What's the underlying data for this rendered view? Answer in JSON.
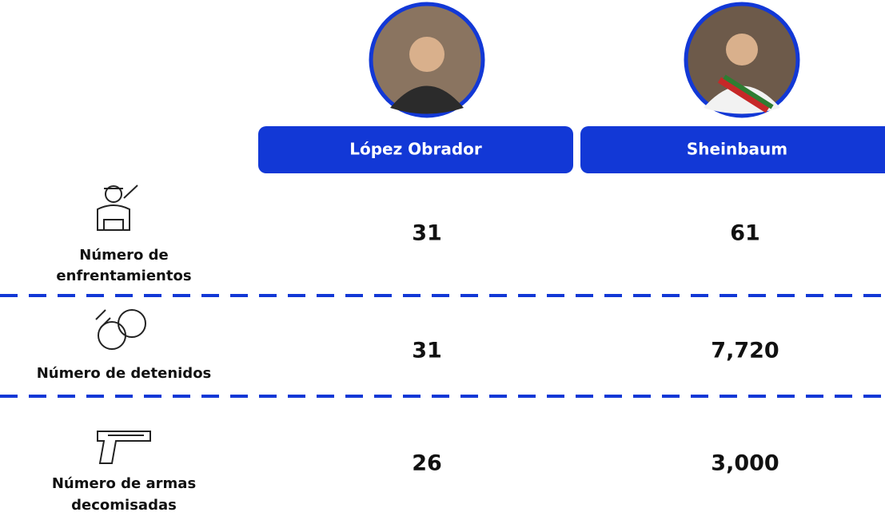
{
  "table": {
    "columns": [
      "López Obrador",
      "Sheinbaum"
    ],
    "rows": [
      {
        "label": [
          "Número de",
          "enfrentamientos"
        ],
        "values": [
          "31",
          "61"
        ]
      },
      {
        "label": [
          "Número de detenidos"
        ],
        "values": [
          "31",
          "7,720"
        ]
      },
      {
        "label": [
          "Número de armas",
          "decomisadas"
        ],
        "values": [
          "26",
          "3,000"
        ]
      }
    ]
  }
}
